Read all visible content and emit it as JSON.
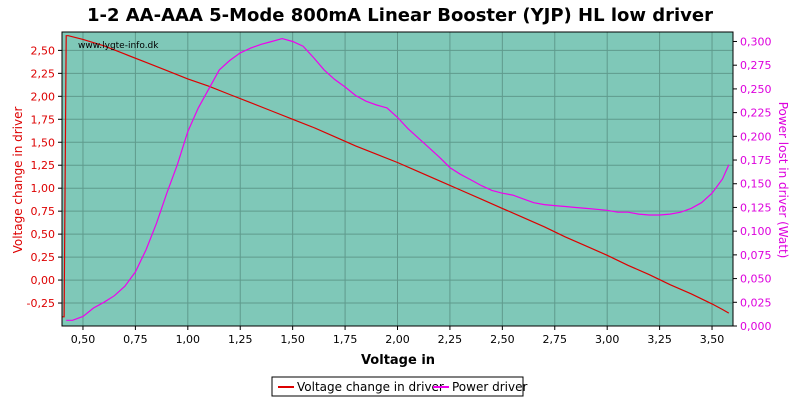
{
  "chart_data": {
    "type": "line",
    "title": "1-2 AA-AAA 5-Mode 800mA Linear Booster (YJP) HL low driver",
    "watermark": "www.lygte-info.dk",
    "xlabel": "Voltage in",
    "ylabel_left": "Voltage change in driver",
    "ylabel_right": "Power lost in driver (Watt)",
    "xlim": [
      0.4,
      3.6
    ],
    "ylim_left": [
      -0.5,
      2.7
    ],
    "ylim_right": [
      0,
      0.31
    ],
    "x_ticks": [
      "0,50",
      "0,75",
      "1,00",
      "1,25",
      "1,50",
      "1,75",
      "2,00",
      "2,25",
      "2,50",
      "2,75",
      "3,00",
      "3,25",
      "3,50"
    ],
    "x_tick_values": [
      0.5,
      0.75,
      1.0,
      1.25,
      1.5,
      1.75,
      2.0,
      2.25,
      2.5,
      2.75,
      3.0,
      3.25,
      3.5
    ],
    "y_left_ticks": [
      "-0,25",
      "0,00",
      "0,25",
      "0,50",
      "0,75",
      "1,00",
      "1,25",
      "1,50",
      "1,75",
      "2,00",
      "2,25",
      "2,50"
    ],
    "y_left_tick_values": [
      -0.25,
      0,
      0.25,
      0.5,
      0.75,
      1.0,
      1.25,
      1.5,
      1.75,
      2.0,
      2.25,
      2.5
    ],
    "y_right_ticks": [
      "0,000",
      "0,025",
      "0,050",
      "0,075",
      "0,100",
      "0,125",
      "0,150",
      "0,175",
      "0,200",
      "0,225",
      "0,250",
      "0,275",
      "0,300"
    ],
    "y_right_tick_values": [
      0,
      0.025,
      0.05,
      0.075,
      0.1,
      0.125,
      0.15,
      0.175,
      0.2,
      0.225,
      0.25,
      0.275,
      0.3
    ],
    "grid": true,
    "legend_position": "bottom",
    "colors": {
      "plot_bg": "#7fc8b8",
      "series1": "#dd0000",
      "series2": "#ee00ee",
      "grid": "#5f9a8c"
    },
    "series": [
      {
        "name": "Voltage change in driver",
        "axis": "left",
        "x": [
          0.4,
          0.41,
          0.42,
          0.43,
          0.5,
          0.6,
          0.7,
          0.8,
          0.9,
          1.0,
          1.1,
          1.2,
          1.3,
          1.4,
          1.5,
          1.6,
          1.7,
          1.8,
          1.9,
          2.0,
          2.1,
          2.2,
          2.3,
          2.4,
          2.5,
          2.6,
          2.7,
          2.8,
          2.9,
          3.0,
          3.1,
          3.2,
          3.3,
          3.4,
          3.5,
          3.55,
          3.58
        ],
        "values": [
          -0.4,
          -0.4,
          2.66,
          2.66,
          2.62,
          2.55,
          2.46,
          2.37,
          2.28,
          2.19,
          2.11,
          2.02,
          1.93,
          1.84,
          1.75,
          1.66,
          1.56,
          1.46,
          1.37,
          1.28,
          1.18,
          1.08,
          0.98,
          0.88,
          0.78,
          0.68,
          0.58,
          0.47,
          0.37,
          0.27,
          0.16,
          0.06,
          -0.05,
          -0.15,
          -0.26,
          -0.32,
          -0.36
        ]
      },
      {
        "name": "Power driver",
        "axis": "right",
        "x": [
          0.42,
          0.45,
          0.5,
          0.55,
          0.6,
          0.65,
          0.7,
          0.75,
          0.8,
          0.85,
          0.9,
          0.95,
          1.0,
          1.05,
          1.1,
          1.15,
          1.2,
          1.25,
          1.3,
          1.35,
          1.4,
          1.45,
          1.5,
          1.55,
          1.6,
          1.65,
          1.7,
          1.75,
          1.8,
          1.85,
          1.9,
          1.95,
          2.0,
          2.05,
          2.1,
          2.15,
          2.2,
          2.25,
          2.3,
          2.35,
          2.4,
          2.45,
          2.5,
          2.55,
          2.6,
          2.65,
          2.7,
          2.75,
          2.8,
          2.85,
          2.9,
          2.95,
          3.0,
          3.05,
          3.1,
          3.15,
          3.2,
          3.25,
          3.3,
          3.35,
          3.4,
          3.45,
          3.5,
          3.55,
          3.58
        ],
        "values": [
          0.006,
          0.006,
          0.01,
          0.019,
          0.025,
          0.032,
          0.042,
          0.057,
          0.08,
          0.108,
          0.14,
          0.17,
          0.205,
          0.23,
          0.25,
          0.27,
          0.28,
          0.288,
          0.293,
          0.297,
          0.3,
          0.303,
          0.3,
          0.295,
          0.283,
          0.27,
          0.26,
          0.252,
          0.243,
          0.237,
          0.233,
          0.23,
          0.22,
          0.208,
          0.198,
          0.188,
          0.178,
          0.167,
          0.16,
          0.154,
          0.148,
          0.143,
          0.14,
          0.138,
          0.134,
          0.13,
          0.128,
          0.127,
          0.126,
          0.125,
          0.124,
          0.123,
          0.122,
          0.12,
          0.12,
          0.118,
          0.117,
          0.117,
          0.118,
          0.12,
          0.124,
          0.13,
          0.14,
          0.155,
          0.17
        ]
      }
    ]
  }
}
